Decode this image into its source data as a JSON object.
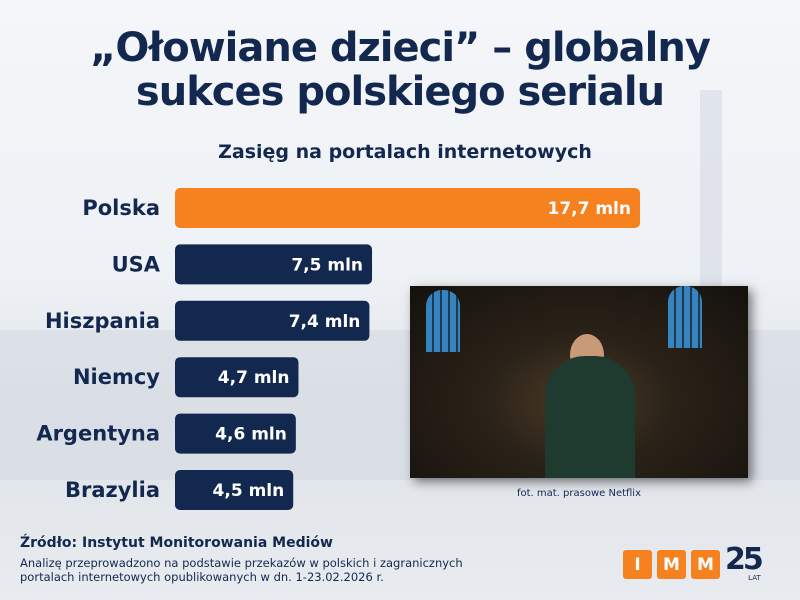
{
  "title": "„Ołowiane dzieci” – globalny sukces polskiego serialu",
  "title_line1": "„Ołowiane dzieci” – globalny",
  "title_line2": "sukces polskiego serialu",
  "chart_data": {
    "type": "bar",
    "orientation": "horizontal",
    "title": "Zasięg na portalach internetowych",
    "unit": "mln",
    "categories": [
      "Polska",
      "USA",
      "Hiszpania",
      "Niemcy",
      "Argentyna",
      "Brazylia"
    ],
    "values": [
      17.7,
      7.5,
      7.4,
      4.7,
      4.6,
      4.5
    ],
    "labels": [
      "17,7 mln",
      "7,5 mln",
      "7,4 mln",
      "4,7 mln",
      "4,6 mln",
      "4,5 mln"
    ],
    "colors": [
      "#f5821f",
      "#13284f",
      "#13284f",
      "#13284f",
      "#13284f",
      "#13284f"
    ]
  },
  "photo_caption": "fot. mat. prasowe Netflix",
  "source_title": "Źródło: Instytut Monitorowania Mediów",
  "source_line1": "Analizę przeprowadzono na podstawie przekazów w polskich i zagranicznych",
  "source_line2": "portalach internetowych opublikowanych w dn. 1-23.02.2026 r.",
  "logo": {
    "letters": [
      "I",
      "M",
      "M"
    ],
    "number": "25",
    "suffix": "LAT"
  }
}
